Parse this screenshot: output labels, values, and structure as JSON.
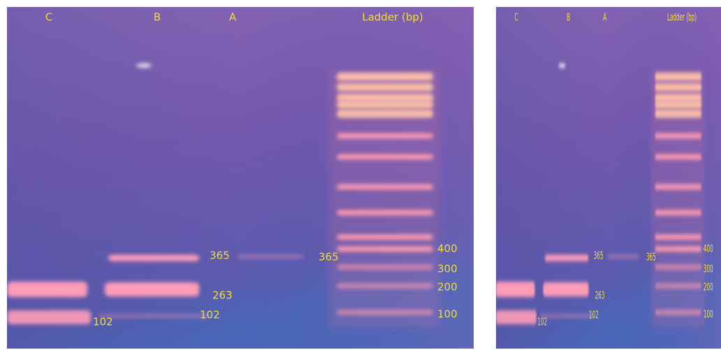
{
  "panels": [
    {
      "lane_labels": [
        "C",
        "B",
        "A",
        "Ladder (bp)"
      ],
      "band_labels": [
        "365",
        "365",
        "263",
        "102",
        "102"
      ],
      "ladder_labels": [
        "400",
        "300",
        "200",
        "100"
      ]
    },
    {
      "lane_labels": [
        "C",
        "B",
        "A",
        "Ladder (bp)"
      ],
      "band_labels": [
        "365",
        "365",
        "263",
        "102",
        "102"
      ],
      "ladder_labels": [
        "400",
        "300",
        "200",
        "100"
      ]
    }
  ]
}
